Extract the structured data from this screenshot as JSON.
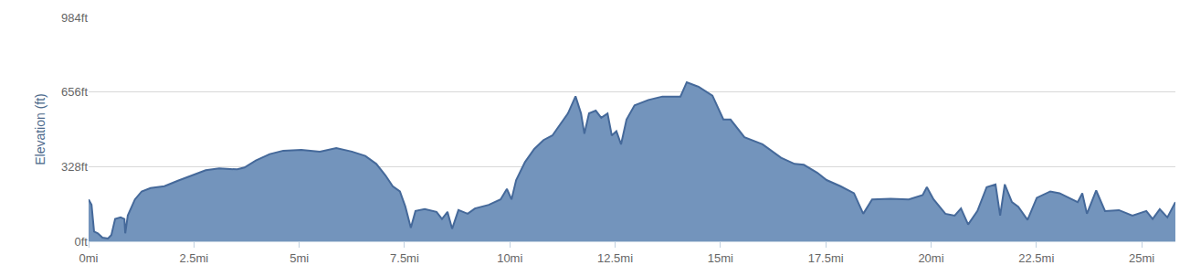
{
  "chart_data": {
    "type": "area",
    "y_label": "Elevation (ft)",
    "color": "#7394bc",
    "grid": true,
    "xlim": [
      0,
      25.8
    ],
    "ylim": [
      0,
      984
    ],
    "xticks": [
      {
        "value": 0,
        "label": "0mi"
      },
      {
        "value": 2.5,
        "label": "2.5mi"
      },
      {
        "value": 5,
        "label": "5mi"
      },
      {
        "value": 7.5,
        "label": "7.5mi"
      },
      {
        "value": 10,
        "label": "10mi"
      },
      {
        "value": 12.5,
        "label": "12.5mi"
      },
      {
        "value": 15,
        "label": "15mi"
      },
      {
        "value": 17.5,
        "label": "17.5mi"
      },
      {
        "value": 20,
        "label": "20mi"
      },
      {
        "value": 22.5,
        "label": "22.5mi"
      },
      {
        "value": 25,
        "label": "25mi"
      }
    ],
    "yticks": [
      {
        "value": 0,
        "label": "0ft"
      },
      {
        "value": 328,
        "label": "328ft"
      },
      {
        "value": 656,
        "label": "656ft"
      },
      {
        "value": 984,
        "label": "984ft"
      }
    ],
    "x": [
      0,
      0.07,
      0.13,
      0.22,
      0.33,
      0.46,
      0.54,
      0.63,
      0.76,
      0.85,
      0.87,
      0.93,
      1.1,
      1.26,
      1.47,
      1.8,
      2.12,
      2.45,
      2.78,
      3.1,
      3.53,
      3.7,
      3.97,
      4.3,
      4.62,
      5.05,
      5.49,
      5.88,
      6.25,
      6.57,
      6.83,
      7.05,
      7.22,
      7.39,
      7.52,
      7.65,
      7.76,
      7.98,
      8.26,
      8.39,
      8.52,
      8.63,
      8.78,
      9.0,
      9.17,
      9.5,
      9.78,
      9.93,
      10.04,
      10.15,
      10.36,
      10.58,
      10.8,
      11.01,
      11.23,
      11.38,
      11.56,
      11.69,
      11.77,
      11.88,
      12.04,
      12.17,
      12.32,
      12.42,
      12.53,
      12.64,
      12.77,
      12.96,
      13.29,
      13.62,
      14.05,
      14.2,
      14.48,
      14.81,
      15.07,
      15.24,
      15.57,
      16.0,
      16.44,
      16.76,
      16.98,
      17.3,
      17.52,
      17.85,
      18.17,
      18.39,
      18.6,
      19.04,
      19.47,
      19.8,
      19.9,
      20.06,
      20.34,
      20.56,
      20.71,
      20.88,
      21.1,
      21.32,
      21.53,
      21.64,
      21.75,
      21.92,
      22.07,
      22.29,
      22.51,
      22.83,
      23.05,
      23.27,
      23.48,
      23.59,
      23.7,
      23.92,
      24.13,
      24.46,
      24.78,
      25.11,
      25.26,
      25.43,
      25.61,
      25.8
    ],
    "values": [
      184,
      160,
      43,
      35,
      16,
      12,
      27,
      98,
      105,
      98,
      35,
      113,
      184,
      219,
      234,
      242,
      266,
      289,
      312,
      320,
      316,
      324,
      355,
      383,
      398,
      402,
      394,
      410,
      394,
      375,
      340,
      289,
      242,
      219,
      152,
      59,
      133,
      141,
      129,
      98,
      129,
      55,
      137,
      121,
      144,
      160,
      184,
      230,
      184,
      269,
      348,
      406,
      445,
      465,
      523,
      562,
      637,
      562,
      473,
      562,
      574,
      543,
      562,
      465,
      484,
      426,
      535,
      597,
      621,
      636,
      636,
      699,
      679,
      640,
      535,
      535,
      457,
      426,
      367,
      340,
      336,
      301,
      269,
      242,
      211,
      121,
      184,
      187,
      184,
      203,
      238,
      184,
      121,
      113,
      144,
      74,
      133,
      238,
      250,
      113,
      250,
      172,
      152,
      94,
      191,
      219,
      211,
      191,
      172,
      211,
      121,
      223,
      133,
      137,
      113,
      133,
      98,
      141,
      105,
      172
    ]
  }
}
